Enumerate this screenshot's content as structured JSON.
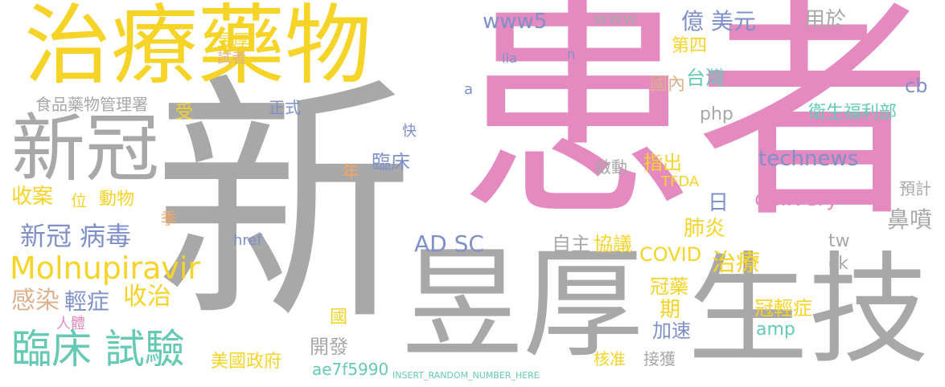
{
  "palette": {
    "gray": "#a8a8a8",
    "pink": "#e48ac1",
    "yellow": "#f5d327",
    "blue": "#7f90c8",
    "green": "#8fcf91",
    "orange": "#f2a769",
    "tan": "#ddb08d",
    "red": "#f07f84",
    "teal": "#66c9b4",
    "light": "#c9c9c9"
  },
  "words": [
    "新",
    "患者",
    "昱厚",
    "生技",
    "治療藥物",
    "新冠",
    "臨床 試驗",
    "Molnupiravir",
    "AD SC",
    "新冠 病毒",
    "收案",
    "動物",
    "感染",
    "輕症",
    "收治",
    "治療",
    "冠輕症",
    "冠藥",
    "期",
    "COVID",
    "肺炎",
    "協議",
    "自主",
    "delivery",
    "technews",
    "台灣",
    "第四",
    "億 美元",
    "用於",
    "www5",
    "www",
    "php",
    "cb",
    "國內",
    "衛生福利部",
    "食品藥物管理署",
    "昱厚",
    "試者",
    "正式",
    "受",
    "臨床",
    "年",
    "日",
    "指出",
    "啟動",
    "TFDA",
    "鼻噴",
    "tw",
    "ck",
    "預計",
    "加速",
    "核准",
    "接獲",
    "開發",
    "國",
    "amp",
    "美國政府",
    "ae7f5990",
    "季",
    "位",
    "人體",
    "href",
    "快",
    "lla",
    "n",
    "a",
    "INSERT_RANDOM_NUMBER_HERE"
  ]
}
